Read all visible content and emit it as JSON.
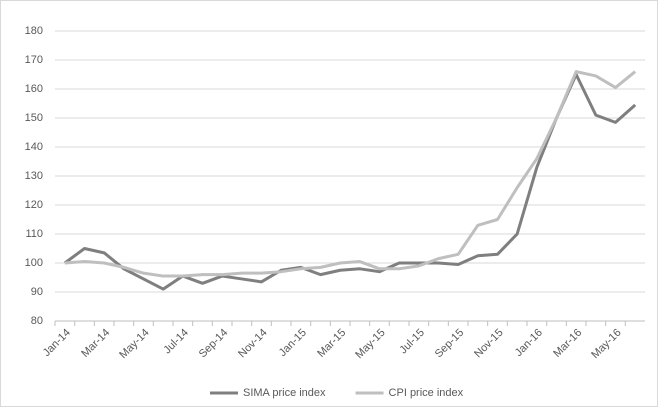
{
  "chart_data": {
    "type": "line",
    "categories": [
      "Jan-14",
      null,
      "Mar-14",
      null,
      "May-14",
      null,
      "Jul-14",
      null,
      "Sep-14",
      null,
      "Nov-14",
      null,
      "Jan-15",
      null,
      "Mar-15",
      null,
      "May-15",
      null,
      "Jul-15",
      null,
      "Sep-15",
      null,
      "Nov-15",
      null,
      "Jan-16",
      null,
      "Mar-16",
      null,
      "May-16",
      null
    ],
    "series": [
      {
        "name": "SIMA price index",
        "color": "#7f7f7f",
        "values": [
          100,
          105,
          103.5,
          98,
          94.5,
          91,
          95.5,
          93,
          95.5,
          94.5,
          93.5,
          97.5,
          98.5,
          96,
          97.5,
          98,
          97,
          100,
          100,
          100,
          99.5,
          102.5,
          103,
          110,
          133,
          150,
          165,
          151,
          148.5,
          154.5
        ]
      },
      {
        "name": "CPI price index",
        "color": "#bfbfbf",
        "values": [
          100,
          100.5,
          100,
          98.5,
          96.5,
          95.5,
          95.5,
          96,
          96,
          96.5,
          96.5,
          97,
          98,
          98.5,
          100,
          100.5,
          98,
          98,
          99,
          101.5,
          103,
          113,
          115,
          126,
          136,
          150,
          166,
          164.5,
          160.5,
          166
        ]
      }
    ],
    "ylim": [
      80,
      180
    ],
    "yticks": [
      80,
      90,
      100,
      110,
      120,
      130,
      140,
      150,
      160,
      170,
      180
    ],
    "grid": true,
    "legend": "bottom"
  }
}
